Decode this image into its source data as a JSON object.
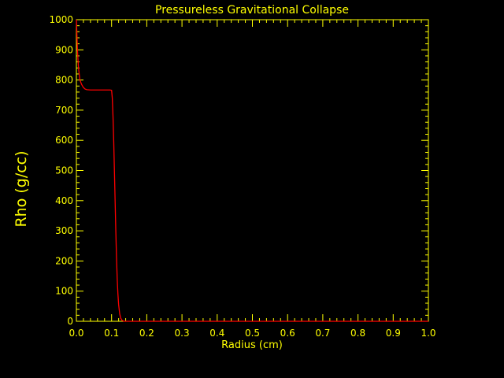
{
  "chart_data": {
    "type": "line",
    "title": "Pressureless Gravitational Collapse",
    "xlabel": "Radius (cm)",
    "ylabel": "Rho (g/cc)",
    "xlim": [
      0.0,
      1.0
    ],
    "ylim": [
      0,
      1000
    ],
    "x_ticks": [
      0.0,
      0.1,
      0.2,
      0.3,
      0.4,
      0.5,
      0.6,
      0.7,
      0.8,
      0.9,
      1.0
    ],
    "x_tick_labels": [
      "0.0",
      "0.1",
      "0.2",
      "0.3",
      "0.4",
      "0.5",
      "0.6",
      "0.7",
      "0.8",
      "0.9",
      "1.0"
    ],
    "y_ticks": [
      0,
      100,
      200,
      300,
      400,
      500,
      600,
      700,
      800,
      900,
      1000
    ],
    "y_tick_labels": [
      "0",
      "100",
      "200",
      "300",
      "400",
      "500",
      "600",
      "700",
      "800",
      "900",
      "1000"
    ],
    "grid": false,
    "colors": {
      "background": "#000000",
      "axes": "#ffff00",
      "series": "#ff0000"
    },
    "series": [
      {
        "x": [
          0.0,
          0.003,
          0.006,
          0.01,
          0.015,
          0.02,
          0.025,
          0.03,
          0.04,
          0.05,
          0.06,
          0.07,
          0.08,
          0.09,
          0.095,
          0.1,
          0.102,
          0.104,
          0.106,
          0.108,
          0.11,
          0.112,
          0.114,
          0.116,
          0.118,
          0.12,
          0.123,
          0.126,
          0.13,
          0.135,
          0.14,
          0.15,
          0.2,
          0.3,
          0.4,
          0.5,
          0.6,
          0.7,
          0.8,
          0.9,
          1.0
        ],
        "y": [
          1000,
          900,
          840,
          800,
          785,
          775,
          770,
          768,
          767,
          767,
          767,
          767,
          767,
          767,
          767,
          766,
          740,
          680,
          600,
          500,
          400,
          300,
          210,
          140,
          90,
          55,
          25,
          10,
          3,
          0,
          0,
          0,
          0,
          0,
          0,
          0,
          0,
          0,
          0,
          0,
          0
        ]
      }
    ]
  }
}
